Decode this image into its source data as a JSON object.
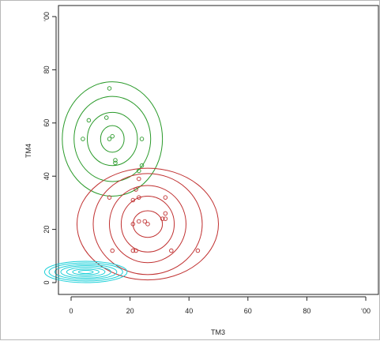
{
  "chart_data": {
    "type": "scatter",
    "title": "",
    "xlabel": "TM3",
    "ylabel": "TM4",
    "xlim": [
      -4,
      100
    ],
    "ylim": [
      -4,
      100
    ],
    "x_ticks": [
      "0",
      "20",
      "40",
      "60",
      "80",
      "ʻ00"
    ],
    "y_ticks": [
      "0",
      "20",
      "40",
      "60",
      "80",
      "ʻ00"
    ],
    "x_tick_values": [
      0,
      20,
      40,
      60,
      80,
      100
    ],
    "y_tick_values": [
      0,
      20,
      40,
      60,
      80,
      100
    ],
    "grid": false,
    "legend": "none",
    "series": [
      {
        "color": "#2a9a2a",
        "points": [
          [
            4,
            54
          ],
          [
            6,
            61
          ],
          [
            12,
            62
          ],
          [
            13,
            73
          ],
          [
            13,
            54
          ],
          [
            14,
            55
          ],
          [
            15,
            46
          ],
          [
            15,
            45
          ],
          [
            23,
            42
          ],
          [
            24,
            44
          ],
          [
            24,
            54
          ]
        ],
        "center": [
          14,
          54
        ],
        "contour_radii": [
          [
            4,
            5
          ],
          [
            8.5,
            10
          ],
          [
            13,
            16
          ],
          [
            17,
            21.5
          ]
        ]
      },
      {
        "color": "#c03030",
        "points": [
          [
            13,
            32
          ],
          [
            14,
            12
          ],
          [
            21,
            31
          ],
          [
            21,
            22
          ],
          [
            22,
            12
          ],
          [
            22,
            35
          ],
          [
            23,
            39
          ],
          [
            23,
            32
          ],
          [
            23,
            23
          ],
          [
            25,
            23
          ],
          [
            26,
            22
          ],
          [
            31,
            24
          ],
          [
            32,
            24
          ],
          [
            32,
            32
          ],
          [
            32,
            26
          ],
          [
            34,
            12
          ],
          [
            43,
            12
          ],
          [
            21,
            12
          ]
        ],
        "center": [
          26,
          22
        ],
        "contour_radii": [
          [
            5,
            5
          ],
          [
            9,
            10.5
          ],
          [
            13,
            14.5
          ],
          [
            18.5,
            19
          ],
          [
            24,
            21
          ]
        ]
      },
      {
        "color": "#19cfd8",
        "points": [],
        "center": [
          5,
          4
        ],
        "contour_radii": [
          [
            2.5,
            0.6
          ],
          [
            4.5,
            1.1
          ],
          [
            6.5,
            1.7
          ],
          [
            8.5,
            2.3
          ],
          [
            10.5,
            2.8
          ],
          [
            12.5,
            3.4
          ],
          [
            14,
            4
          ]
        ]
      }
    ]
  }
}
